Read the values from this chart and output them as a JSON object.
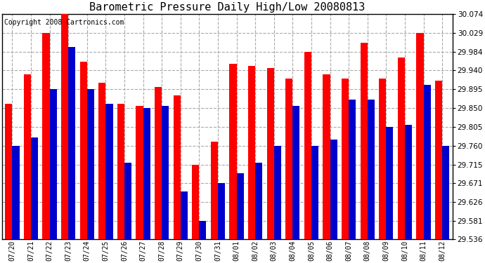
{
  "title": "Barometric Pressure Daily High/Low 20080813",
  "copyright": "Copyright 2008 Cartronics.com",
  "dates": [
    "07/20",
    "07/21",
    "07/22",
    "07/23",
    "07/24",
    "07/25",
    "07/26",
    "07/27",
    "07/28",
    "07/29",
    "07/30",
    "07/31",
    "08/01",
    "08/02",
    "08/03",
    "08/04",
    "08/05",
    "08/06",
    "08/07",
    "08/08",
    "08/09",
    "08/10",
    "08/11",
    "08/12"
  ],
  "highs": [
    29.86,
    29.93,
    30.029,
    30.074,
    29.96,
    29.91,
    29.86,
    29.855,
    29.9,
    29.88,
    29.715,
    29.77,
    29.955,
    29.95,
    29.945,
    29.92,
    29.984,
    29.93,
    29.92,
    30.006,
    29.92,
    29.97,
    30.029,
    29.915
  ],
  "lows": [
    29.76,
    29.78,
    29.895,
    29.995,
    29.895,
    29.86,
    29.72,
    29.85,
    29.855,
    29.65,
    29.58,
    29.67,
    29.695,
    29.72,
    29.76,
    29.855,
    29.76,
    29.775,
    29.87,
    29.87,
    29.805,
    29.81,
    29.905,
    29.76
  ],
  "high_color": "#FF0000",
  "low_color": "#0000CC",
  "bg_color": "#FFFFFF",
  "grid_color": "#AAAAAA",
  "ymin": 29.536,
  "ymax": 30.074,
  "yticks": [
    29.536,
    29.581,
    29.626,
    29.671,
    29.715,
    29.76,
    29.805,
    29.85,
    29.895,
    29.94,
    29.984,
    30.029,
    30.074
  ],
  "title_fontsize": 11,
  "copyright_fontsize": 7,
  "bar_width": 0.38
}
